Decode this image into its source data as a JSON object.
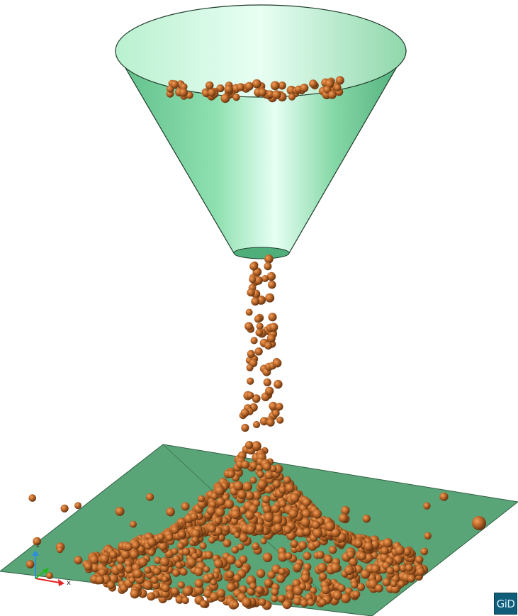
{
  "scene": {
    "description_visible": "",
    "colors": {
      "background": "#ffffff",
      "funnel_light": "#d8fff0",
      "funnel_mid": "#7fd6a1",
      "funnel_dark": "#4fae7a",
      "plate": "#5aa577",
      "plate_edge": "#2f5e42",
      "particle": "#b8662a",
      "particle_highlight": "#e09050",
      "particle_shadow": "#5a2e0e"
    },
    "objects": [
      "funnel",
      "falling-particles",
      "particle-heap",
      "ground-plate"
    ]
  },
  "axes_triad": {
    "z_label": "z",
    "x_label": "x",
    "colors": {
      "z": "#2b8fe0",
      "x": "#e02424",
      "y": "#22b822"
    }
  },
  "logo": {
    "text": "GiD"
  }
}
